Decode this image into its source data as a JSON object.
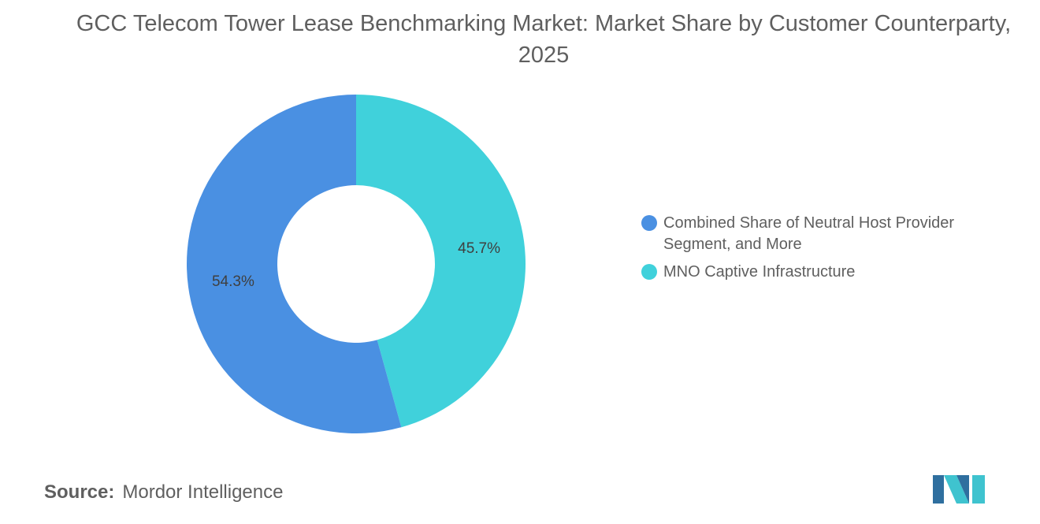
{
  "title": "GCC Telecom Tower Lease Benchmarking Market: Market Share by Customer Counterparty, 2025",
  "chart_data": {
    "type": "pie",
    "variant": "donut",
    "title": "GCC Telecom Tower Lease Benchmarking Market: Market Share by Customer Counterparty, 2025",
    "categories": [
      "Combined Share of Neutral Host Provider Segment, and More",
      "MNO Captive Infrastructure"
    ],
    "values": [
      54.3,
      45.7
    ],
    "labels": [
      "54.3%",
      "45.7%"
    ],
    "colors": [
      "#4a90e2",
      "#40d1db"
    ],
    "legend": "right"
  },
  "source": {
    "label": "Source:",
    "value": "Mordor Intelligence"
  },
  "logo": {
    "name": "mordor-intelligence-logo",
    "colors": [
      "#2f6f9f",
      "#3fc3cf"
    ]
  }
}
